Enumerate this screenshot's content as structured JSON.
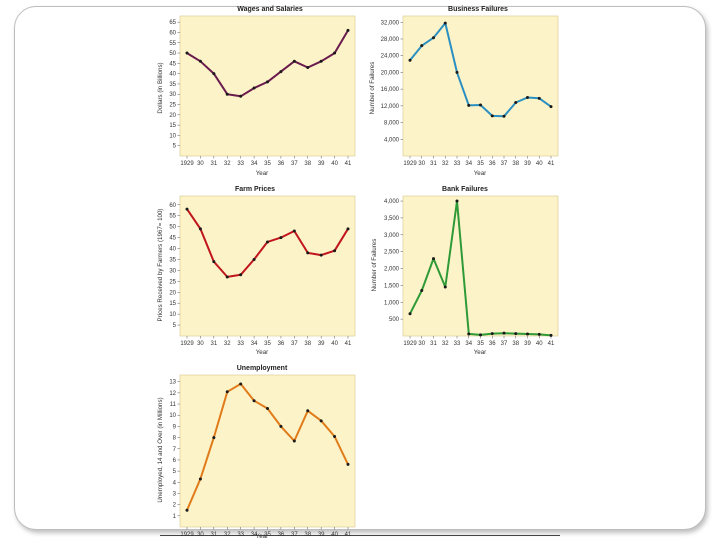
{
  "chart_data": [
    {
      "id": "wages",
      "type": "line",
      "title": "Wages and Salaries",
      "xlabel": "Year",
      "ylabel": "Dollars (in Billions)",
      "x_tick_labels": [
        "1929",
        "30",
        "31",
        "32",
        "33",
        "34",
        "35",
        "36",
        "37",
        "38",
        "39",
        "40",
        "41"
      ],
      "y_ticks": [
        5,
        10,
        15,
        20,
        25,
        30,
        35,
        40,
        45,
        50,
        55,
        60,
        65
      ],
      "y_tick_labels": [
        "5",
        "10",
        "15",
        "20",
        "25",
        "30",
        "35",
        "40",
        "45",
        "50",
        "55",
        "60",
        "65"
      ],
      "ylim": [
        0,
        68
      ],
      "grid": false,
      "color": "#6a1b4d",
      "series": [
        {
          "values": [
            50,
            46,
            40,
            30,
            29,
            33,
            36,
            41,
            46,
            43,
            46,
            50,
            61
          ]
        }
      ]
    },
    {
      "id": "business",
      "type": "line",
      "title": "Business Failures",
      "xlabel": "Year",
      "ylabel": "Number of Failures",
      "x_tick_labels": [
        "1929",
        "30",
        "31",
        "32",
        "33",
        "34",
        "35",
        "36",
        "37",
        "38",
        "39",
        "40",
        "41"
      ],
      "y_ticks": [
        4000,
        8000,
        12000,
        16000,
        20000,
        24000,
        28000,
        32000
      ],
      "y_tick_labels": [
        "4,000",
        "8,000",
        "12,000",
        "16,000",
        "20,000",
        "24,000",
        "28,000",
        "32,000"
      ],
      "ylim": [
        0,
        33500
      ],
      "grid": false,
      "color": "#2a8fc1",
      "series": [
        {
          "values": [
            22900,
            26400,
            28300,
            31800,
            20000,
            12100,
            12200,
            9600,
            9500,
            12800,
            14000,
            13800,
            11800
          ]
        }
      ]
    },
    {
      "id": "farm",
      "type": "line",
      "title": "Farm Prices",
      "xlabel": "Year",
      "ylabel": "Prices Received by Farmers (1967= 100)",
      "x_tick_labels": [
        "1929",
        "30",
        "31",
        "32",
        "33",
        "34",
        "35",
        "36",
        "37",
        "38",
        "39",
        "40",
        "41"
      ],
      "y_ticks": [
        5,
        10,
        15,
        20,
        25,
        30,
        35,
        40,
        45,
        50,
        55,
        60
      ],
      "y_tick_labels": [
        "5",
        "10",
        "15",
        "20",
        "25",
        "30",
        "35",
        "40",
        "45",
        "50",
        "55",
        "60"
      ],
      "ylim": [
        0,
        64
      ],
      "grid": false,
      "color": "#c0151c",
      "series": [
        {
          "values": [
            58,
            49,
            34,
            27,
            28,
            35,
            43,
            45,
            48,
            38,
            37,
            39,
            49
          ]
        }
      ]
    },
    {
      "id": "bank",
      "type": "line",
      "title": "Bank Failures",
      "xlabel": "Year",
      "ylabel": "Number of Failures",
      "x_tick_labels": [
        "1929",
        "30",
        "31",
        "32",
        "33",
        "34",
        "35",
        "36",
        "37",
        "38",
        "39",
        "40",
        "41"
      ],
      "y_ticks": [
        500,
        1000,
        1500,
        2000,
        2500,
        3000,
        3500,
        4000
      ],
      "y_tick_labels": [
        "500",
        "1,000",
        "1,500",
        "2,000",
        "2,500",
        "3,000",
        "3,500",
        "4,000"
      ],
      "ylim": [
        0,
        4150
      ],
      "grid": false,
      "color": "#2f9a37",
      "series": [
        {
          "values": [
            659,
            1350,
            2293,
            1453,
            4000,
            61,
            32,
            72,
            84,
            72,
            60,
            48,
            17
          ]
        }
      ]
    },
    {
      "id": "unemployment",
      "type": "line",
      "title": "Unemployment",
      "xlabel": "Year",
      "ylabel": "Unemployed, 14 and Over (in Millions)",
      "x_tick_labels": [
        "1929",
        "30",
        "31",
        "32",
        "33",
        "34",
        "35",
        "36",
        "37",
        "38",
        "39",
        "40",
        "41"
      ],
      "y_ticks": [
        1,
        2,
        3,
        4,
        5,
        6,
        7,
        8,
        9,
        10,
        11,
        12,
        13
      ],
      "y_tick_labels": [
        "1",
        "2",
        "3",
        "4",
        "5",
        "6",
        "7",
        "8",
        "9",
        "10",
        "11",
        "12",
        "13"
      ],
      "ylim": [
        0,
        13.6
      ],
      "grid": false,
      "color": "#e07b1a",
      "series": [
        {
          "values": [
            1.5,
            4.3,
            8.0,
            12.1,
            12.8,
            11.3,
            10.6,
            9.0,
            7.7,
            10.4,
            9.5,
            8.1,
            5.6
          ]
        }
      ]
    }
  ]
}
